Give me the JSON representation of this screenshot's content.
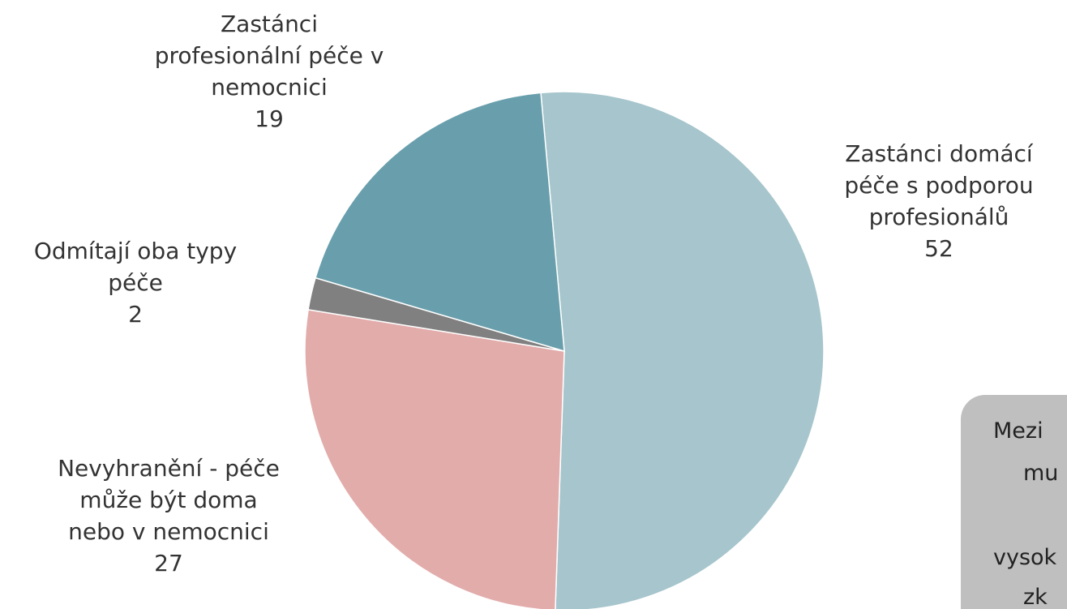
{
  "chart_data": {
    "type": "pie",
    "categories": [
      "Zastánci domácí\npéče s podporou\nprofesionálů",
      "Nevyhranění - péče\nmůže být doma\nnebo v nemocnici",
      "Odmítají oba typy\npéče",
      "Zastánci\nprofesionální péče v\nnemocnici"
    ],
    "values": [
      52,
      27,
      2,
      19
    ],
    "colors": [
      "#a6c5cc",
      "#e2acab",
      "#808080",
      "#699fac"
    ],
    "annotation": [
      "Mezi",
      "mu",
      "vysok",
      "zk"
    ]
  }
}
